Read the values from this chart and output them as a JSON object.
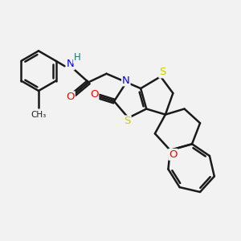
{
  "bg_color": "#f2f2f2",
  "bond_color": "#1a1a1a",
  "bond_width": 1.8,
  "dbo": 0.055,
  "atom_colors": {
    "N": "#0000ff",
    "H": "#008080",
    "O": "#ff0000",
    "S": "#cccc00"
  },
  "figsize": [
    3.0,
    3.0
  ],
  "dpi": 100
}
